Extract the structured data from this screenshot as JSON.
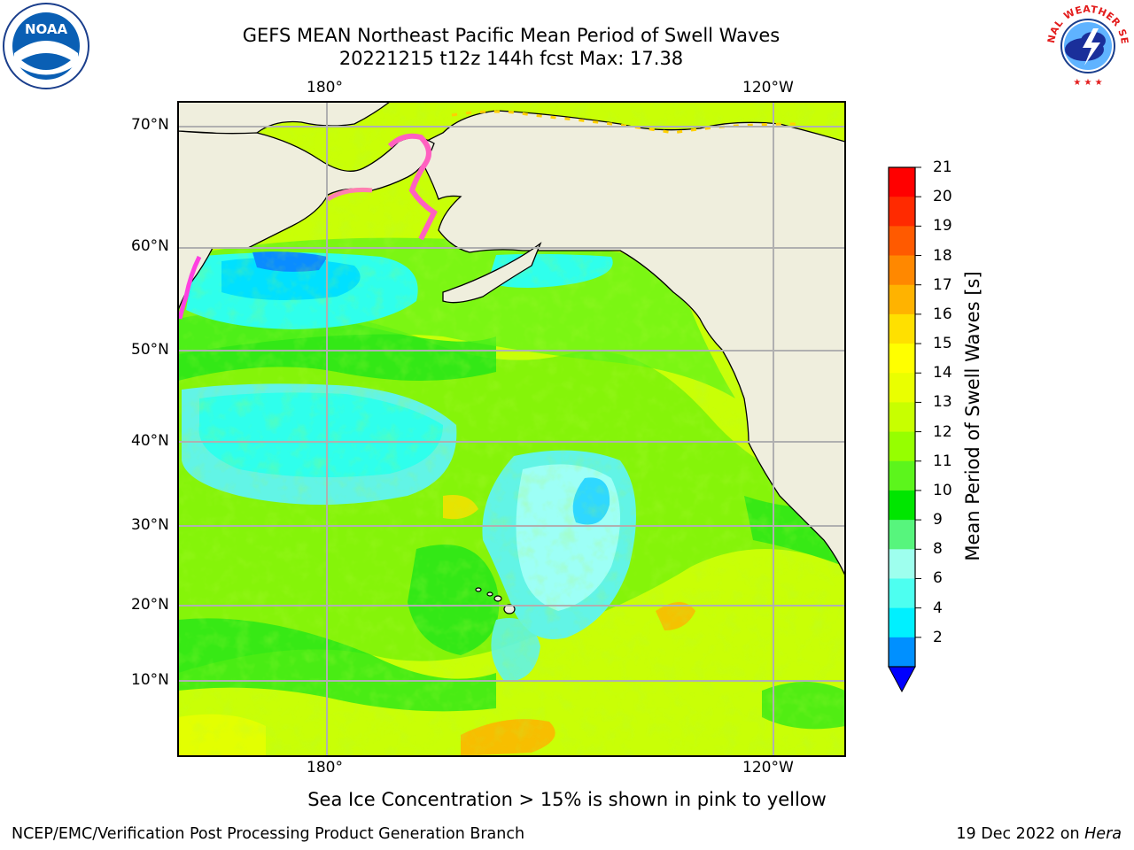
{
  "title": {
    "line1": "GEFS MEAN Northeast Pacific Mean Period of Swell Waves",
    "line2": "20221215 t12z 144h fcst   Max: 17.38"
  },
  "logos": {
    "left": {
      "name": "NOAA",
      "icon": "noaa-logo",
      "color": "#0a5fb4"
    },
    "right": {
      "name": "NATIONAL WEATHER SERVICE",
      "icon": "nws-logo",
      "color": "#e31c1c"
    }
  },
  "map": {
    "lon_labels_top": [
      "180°",
      "120°W"
    ],
    "lon_labels_bottom": [
      "180°",
      "120°W"
    ],
    "lat_labels": [
      "70°N",
      "60°N",
      "50°N",
      "40°N",
      "30°N",
      "20°N",
      "10°N"
    ],
    "land_color": "#efeedd",
    "grid_color": "#b0b0b0"
  },
  "colorbar": {
    "label": "Mean Period of Swell Waves [s]",
    "ticks": [
      "21",
      "20",
      "19",
      "18",
      "17",
      "16",
      "15",
      "14",
      "13",
      "12",
      "11",
      "10",
      "9",
      "8",
      "6",
      "4",
      "2"
    ],
    "colors_top_to_bottom": [
      "#ff0000",
      "#ff2a00",
      "#ff5a00",
      "#ff8800",
      "#ffb300",
      "#ffe000",
      "#ffff00",
      "#eaff00",
      "#c8ff00",
      "#96ff00",
      "#5cf51c",
      "#00e600",
      "#57f57d",
      "#9effee",
      "#4dfff0",
      "#00f0ff",
      "#0090ff"
    ],
    "extend_color": "#0000ff"
  },
  "note": "Sea Ice Concentration > 15% is shown in pink to yellow",
  "footer": {
    "left": "NCEP/EMC/Verification Post Processing Product Generation Branch",
    "right_date": "19 Dec 2022 on ",
    "right_host": "Hera"
  }
}
